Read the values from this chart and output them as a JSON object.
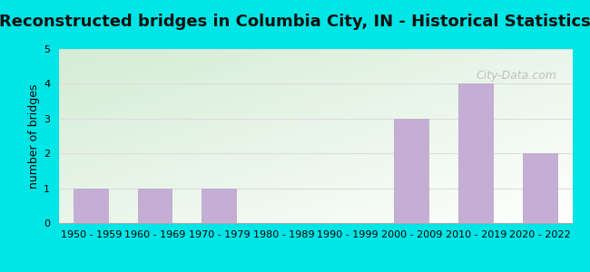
{
  "title": "Reconstructed bridges in Columbia City, IN - Historical Statistics",
  "categories": [
    "1950 - 1959",
    "1960 - 1969",
    "1970 - 1979",
    "1980 - 1989",
    "1990 - 1999",
    "2000 - 2009",
    "2010 - 2019",
    "2020 - 2022"
  ],
  "values": [
    1,
    1,
    1,
    0,
    0,
    3,
    4,
    2
  ],
  "bar_color": "#c4aed4",
  "ylabel": "number of bridges",
  "ylim": [
    0,
    5
  ],
  "yticks": [
    0,
    1,
    2,
    3,
    4,
    5
  ],
  "background_outer": "#00e5e5",
  "title_fontsize": 13,
  "ylabel_fontsize": 9,
  "tick_fontsize": 8,
  "watermark": "City-Data.com",
  "grid_color": "#dddddd",
  "bg_gradient_colors": [
    "#d4ecd4",
    "#f0f8f0",
    "#ffffff"
  ],
  "bottom_axis_color": "#aaaaaa"
}
